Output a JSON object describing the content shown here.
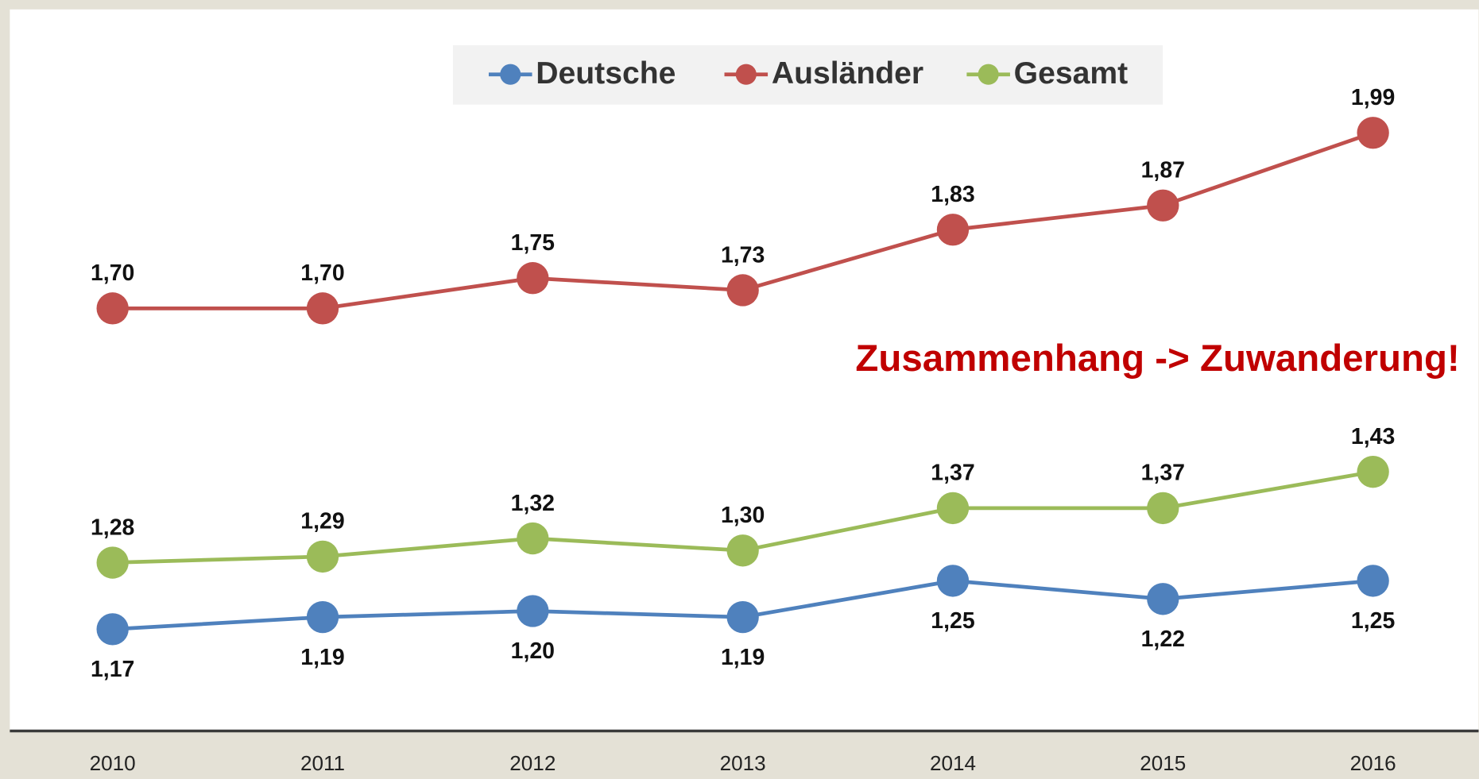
{
  "chart_data": {
    "type": "line",
    "categories": [
      "2010",
      "2011",
      "2012",
      "2013",
      "2014",
      "2015",
      "2016"
    ],
    "series": [
      {
        "name": "Deutsche",
        "color": "#4f81bd",
        "values": [
          1.17,
          1.19,
          1.2,
          1.19,
          1.25,
          1.22,
          1.25
        ],
        "value_labels": [
          "1,17",
          "1,19",
          "1,20",
          "1,19",
          "1,25",
          "1,22",
          "1,25"
        ]
      },
      {
        "name": "Ausländer",
        "color": "#c0504d",
        "values": [
          1.7,
          1.7,
          1.75,
          1.73,
          1.83,
          1.87,
          1.99
        ],
        "value_labels": [
          "1,70",
          "1,70",
          "1,75",
          "1,73",
          "1,83",
          "1,87",
          "1,99"
        ]
      },
      {
        "name": "Gesamt",
        "color": "#9bbb59",
        "values": [
          1.28,
          1.29,
          1.32,
          1.3,
          1.37,
          1.37,
          1.43
        ],
        "value_labels": [
          "1,28",
          "1,29",
          "1,32",
          "1,30",
          "1,37",
          "1,37",
          "1,43"
        ]
      }
    ],
    "annotation": "Zusammenhang -> Zuwanderung!",
    "legend": "top"
  }
}
